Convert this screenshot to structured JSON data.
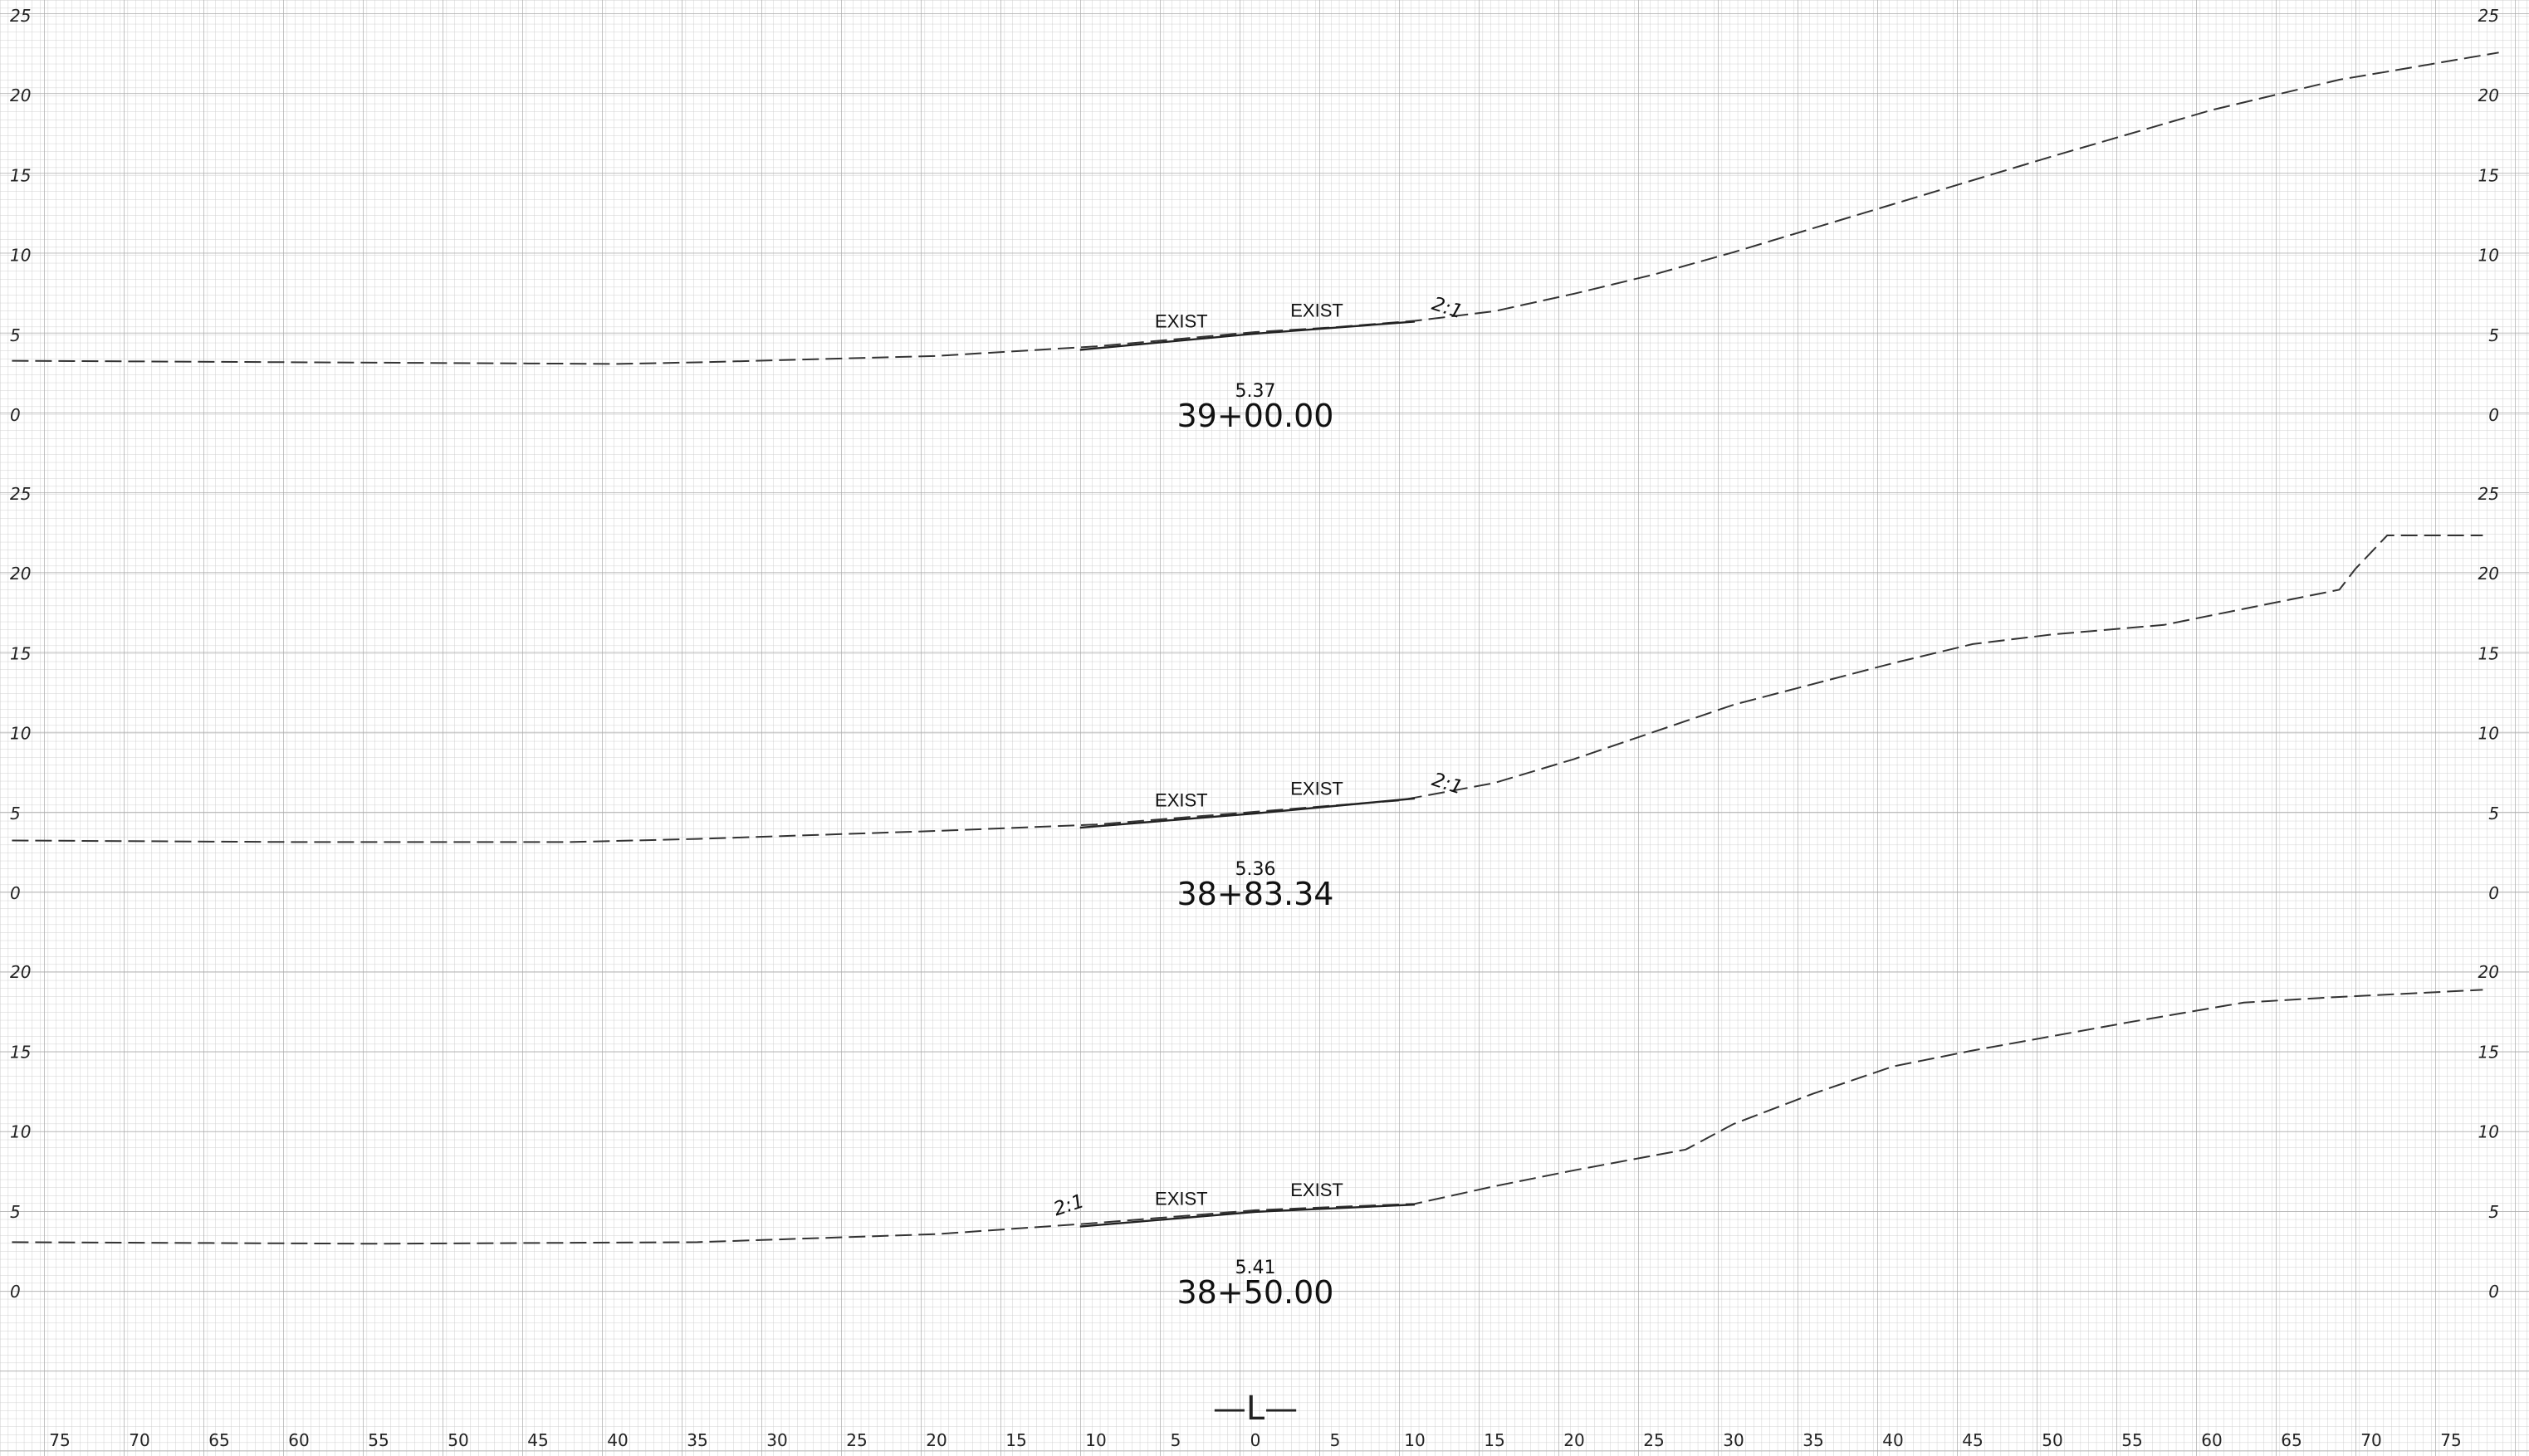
{
  "grid": {
    "offset_labels": [
      "75",
      "70",
      "65",
      "60",
      "55",
      "50",
      "45",
      "40",
      "35",
      "30",
      "25",
      "20",
      "15",
      "10",
      "5",
      "0",
      "5",
      "10",
      "15",
      "20",
      "25",
      "30",
      "35",
      "40",
      "45",
      "50",
      "55",
      "60",
      "65",
      "70",
      "75"
    ],
    "centerline_symbol": "—L—"
  },
  "sections": [
    {
      "station": "39+00.00",
      "centerline_elevation": "5.37",
      "elevation_labels": [
        "25",
        "20",
        "15",
        "10",
        "5",
        "0"
      ],
      "exist_left_label": "EXIST",
      "exist_right_label": "EXIST",
      "slope_label": "2:1",
      "slope_side": "right",
      "existing_ground": [
        [
          -78,
          3.4
        ],
        [
          -40,
          3.2
        ],
        [
          -35,
          3.3
        ],
        [
          -20,
          3.7
        ],
        [
          -10,
          4.3
        ],
        [
          0,
          5.2
        ],
        [
          5,
          5.5
        ],
        [
          10,
          5.9
        ],
        [
          15,
          6.5
        ],
        [
          20,
          7.6
        ],
        [
          25,
          8.8
        ],
        [
          30,
          10.2
        ],
        [
          40,
          13.2
        ],
        [
          50,
          16.2
        ],
        [
          60,
          19.1
        ],
        [
          68,
          21.0
        ],
        [
          71,
          21.5
        ],
        [
          78,
          22.7
        ]
      ]
    },
    {
      "station": "38+83.34",
      "centerline_elevation": "5.36",
      "elevation_labels": [
        "25",
        "20",
        "15",
        "10",
        "5",
        "0"
      ],
      "exist_left_label": "EXIST",
      "exist_right_label": "EXIST",
      "slope_label": "2:1",
      "slope_side": "right",
      "existing_ground": [
        [
          -78,
          3.3
        ],
        [
          -60,
          3.2
        ],
        [
          -43,
          3.2
        ],
        [
          -35,
          3.4
        ],
        [
          -20,
          3.9
        ],
        [
          -10,
          4.3
        ],
        [
          0,
          5.1
        ],
        [
          5,
          5.5
        ],
        [
          9,
          5.8
        ],
        [
          15,
          6.9
        ],
        [
          20,
          8.4
        ],
        [
          30,
          11.8
        ],
        [
          40,
          14.4
        ],
        [
          45,
          15.6
        ],
        [
          50,
          16.2
        ],
        [
          57,
          16.8
        ],
        [
          62,
          17.8
        ],
        [
          68,
          19.0
        ],
        [
          69,
          20.3
        ],
        [
          71,
          22.4
        ],
        [
          77,
          22.4
        ]
      ]
    },
    {
      "station": "38+50.00",
      "centerline_elevation": "5.41",
      "elevation_labels": [
        "20",
        "15",
        "10",
        "5",
        "0"
      ],
      "exist_left_label": "EXIST",
      "exist_right_label": "EXIST",
      "slope_label": "2:1",
      "slope_side": "left",
      "existing_ground": [
        [
          -78,
          3.1
        ],
        [
          -55,
          3.0
        ],
        [
          -35,
          3.1
        ],
        [
          -20,
          3.6
        ],
        [
          -10,
          4.3
        ],
        [
          0,
          5.1
        ],
        [
          5,
          5.3
        ],
        [
          10,
          5.5
        ],
        [
          15,
          6.6
        ],
        [
          20,
          7.6
        ],
        [
          27,
          8.9
        ],
        [
          30,
          10.5
        ],
        [
          35,
          12.4
        ],
        [
          40,
          14.1
        ],
        [
          45,
          15.1
        ],
        [
          50,
          16.0
        ],
        [
          55,
          16.9
        ],
        [
          62,
          18.1
        ],
        [
          67,
          18.4
        ],
        [
          77,
          18.9
        ]
      ]
    }
  ]
}
